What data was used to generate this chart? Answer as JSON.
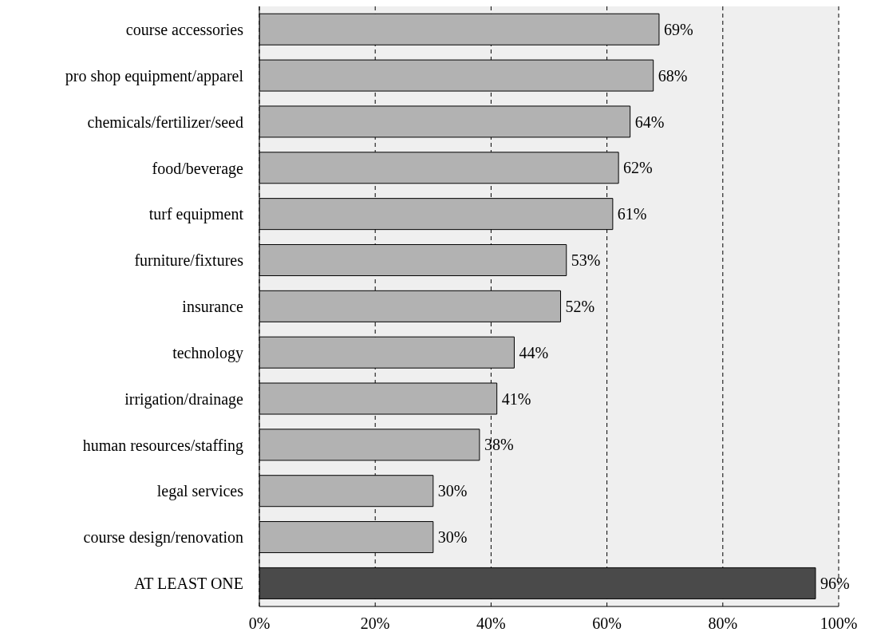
{
  "chart_data": {
    "type": "bar",
    "orientation": "horizontal",
    "categories": [
      "course accessories",
      "pro shop equipment/apparel",
      "chemicals/fertilizer/seed",
      "food/beverage",
      "turf equipment",
      "furniture/fixtures",
      "insurance",
      "technology",
      "irrigation/drainage",
      "human resources/staffing",
      "legal services",
      "course design/renovation",
      "AT LEAST ONE"
    ],
    "values": [
      69,
      68,
      64,
      62,
      61,
      53,
      52,
      44,
      41,
      38,
      30,
      30,
      96
    ],
    "value_labels": [
      "69%",
      "68%",
      "64%",
      "62%",
      "61%",
      "53%",
      "52%",
      "44%",
      "41%",
      "38%",
      "30%",
      "30%",
      "96%"
    ],
    "colors": [
      "#b2b2b2",
      "#b2b2b2",
      "#b2b2b2",
      "#b2b2b2",
      "#b2b2b2",
      "#b2b2b2",
      "#b2b2b2",
      "#b2b2b2",
      "#b2b2b2",
      "#b2b2b2",
      "#b2b2b2",
      "#b2b2b2",
      "#4a4a4a"
    ],
    "xlim": [
      0,
      100
    ],
    "xticks": [
      {
        "value": 0,
        "label": "0%"
      },
      {
        "value": 20,
        "label": "20%"
      },
      {
        "value": 40,
        "label": "40%"
      },
      {
        "value": 60,
        "label": "60%"
      },
      {
        "value": 80,
        "label": "80%"
      },
      {
        "value": 100,
        "label": "100%"
      }
    ],
    "grid": "x"
  }
}
